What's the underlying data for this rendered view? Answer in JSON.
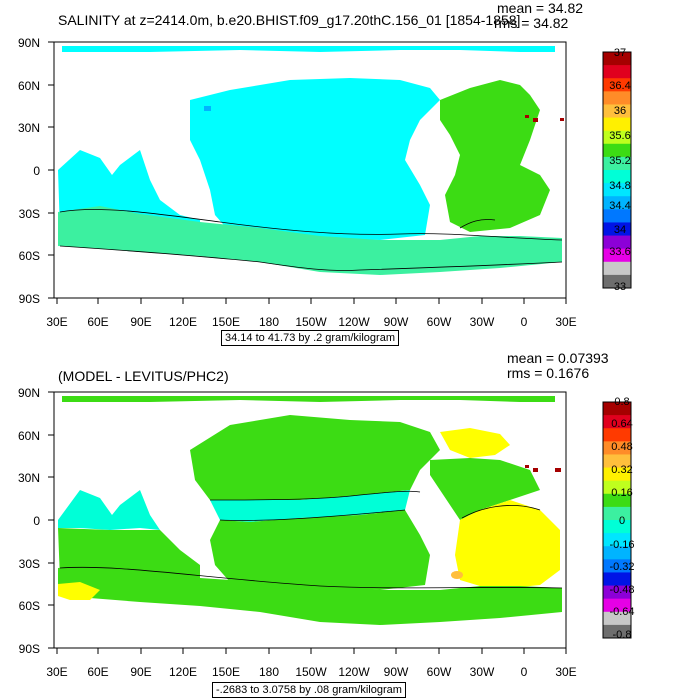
{
  "panels": [
    {
      "title": "SALINITY at z=2414.0m, b.e20.BHIST.f09_g17.20thC.156_01 [1854-1858]",
      "mean_label": "mean = 34.82",
      "rms_label": "rms = 34.82",
      "range_text": "34.14 to 41.73 by .2 gram/kilogram",
      "lat_labels": [
        "90N",
        "60N",
        "30N",
        "0",
        "30S",
        "60S",
        "90S"
      ],
      "lon_labels": [
        "30E",
        "60E",
        "90E",
        "120E",
        "150E",
        "180",
        "150W",
        "120W",
        "90W",
        "60W",
        "30W",
        "0",
        "30E"
      ],
      "colorbar": {
        "labels": [
          "37",
          "36.4",
          "36",
          "35.6",
          "35.2",
          "34.8",
          "34.4",
          "34",
          "33.6",
          "33"
        ],
        "colors": [
          "#a50000",
          "#e0001e",
          "#ff3a00",
          "#ff8c28",
          "#ffbf3c",
          "#fff000",
          "#bfff1e",
          "#3cdc14",
          "#3cf0a0",
          "#00ffd7",
          "#00e6ff",
          "#00b4ff",
          "#0078ff",
          "#0014e6",
          "#8c00d7",
          "#e600e6",
          "#c8c8c8",
          "#6e6e6e"
        ]
      }
    },
    {
      "title": "(MODEL - LEVITUS/PHC2)",
      "mean_label": "mean = 0.07393",
      "rms_label": "rms = 0.1676",
      "range_text": "-.2683 to 3.0758 by .08 gram/kilogram",
      "lat_labels": [
        "90N",
        "60N",
        "30N",
        "0",
        "30S",
        "60S",
        "90S"
      ],
      "lon_labels": [
        "30E",
        "60E",
        "90E",
        "120E",
        "150E",
        "180",
        "150W",
        "120W",
        "90W",
        "60W",
        "30W",
        "0",
        "30E"
      ],
      "colorbar": {
        "labels": [
          "0.8",
          "0.64",
          "0.48",
          "0.32",
          "0.16",
          "0",
          "-0.16",
          "-0.32",
          "-0.48",
          "-0.64",
          "-0.8"
        ],
        "colors": [
          "#a50000",
          "#e0001e",
          "#ff3a00",
          "#ff8c28",
          "#ffbf3c",
          "#fff000",
          "#bfff1e",
          "#3cdc14",
          "#3cf0a0",
          "#00ffd7",
          "#00e6ff",
          "#00b4ff",
          "#0078ff",
          "#0014e6",
          "#8c00d7",
          "#e600e6",
          "#c8c8c8",
          "#6e6e6e"
        ]
      }
    }
  ],
  "colors": {
    "high_salinity": "#00ffff",
    "atlantic": "#00e640",
    "mid_green": "#3cdc14",
    "yellow": "#ffff00",
    "med_red": "#a50000",
    "contour": "#000000"
  }
}
